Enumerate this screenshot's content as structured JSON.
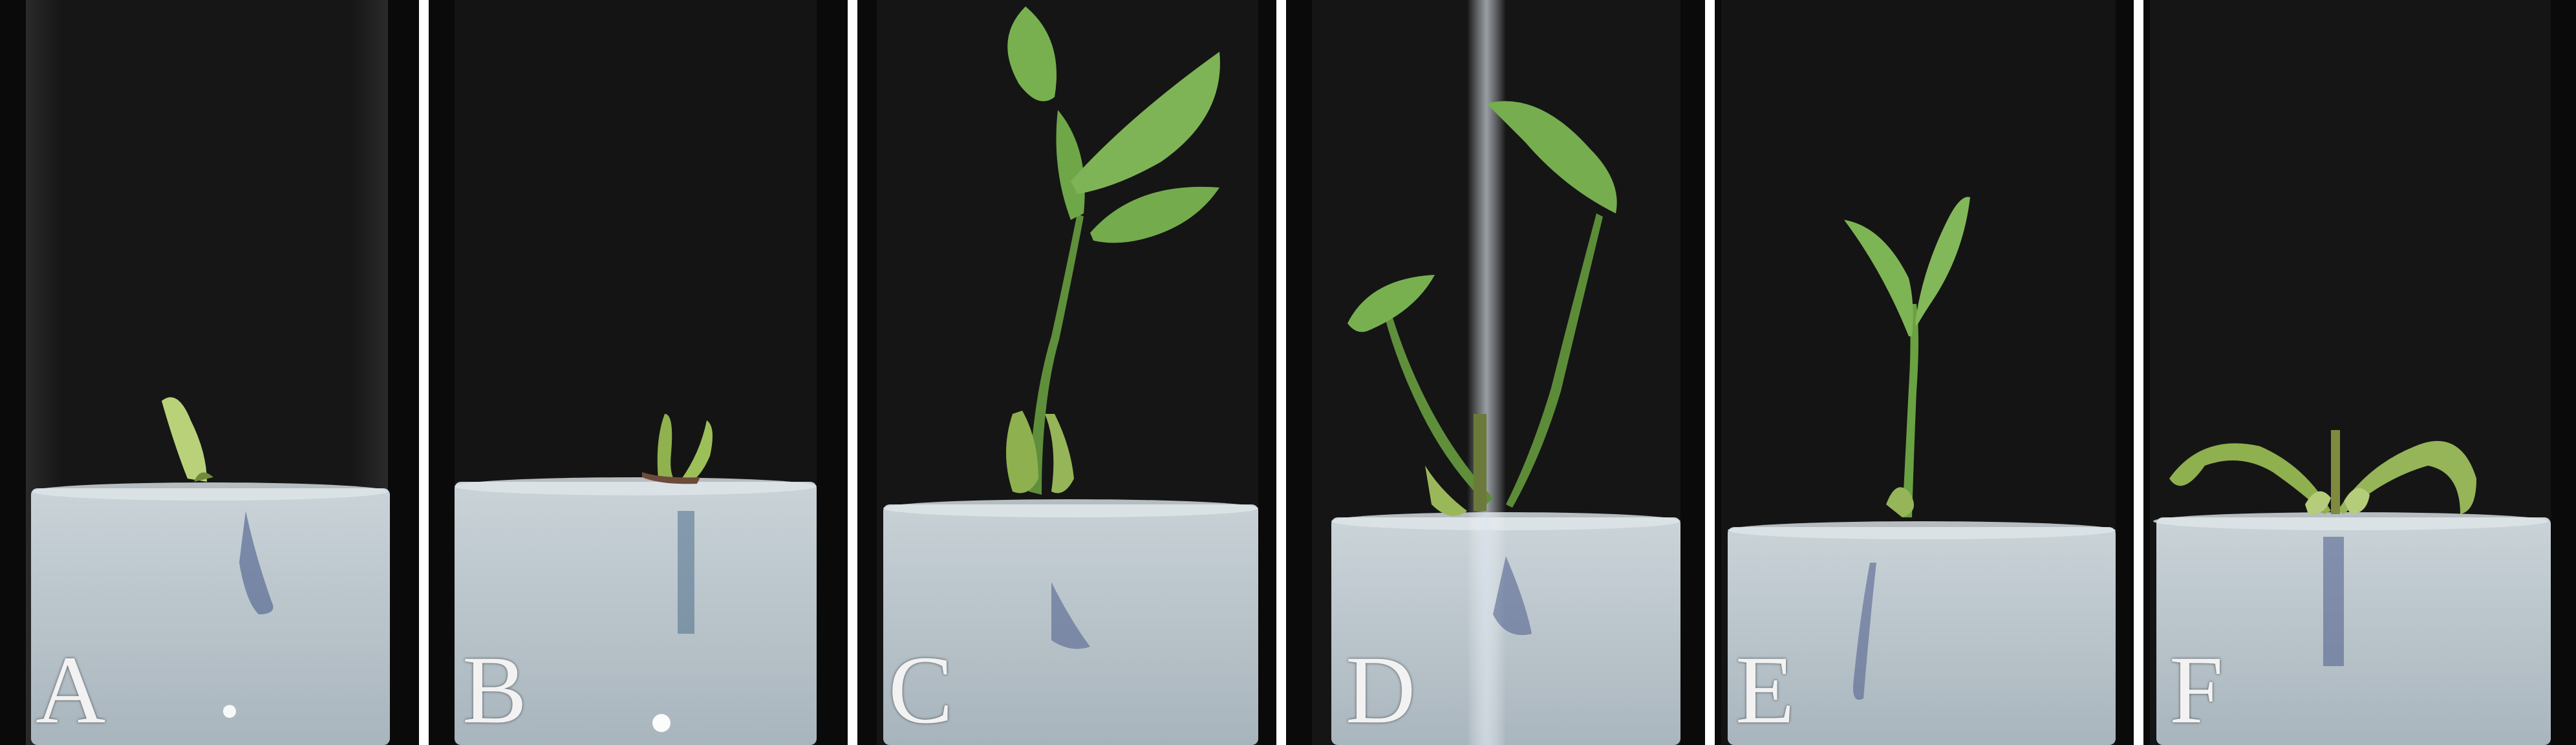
{
  "figure": {
    "panels": [
      {
        "letter": "A",
        "subject": "germinating-embryo-in-test-tube"
      },
      {
        "letter": "B",
        "subject": "small-shoot-in-test-tube"
      },
      {
        "letter": "C",
        "subject": "plantlet-with-leaves-in-test-tube"
      },
      {
        "letter": "D",
        "subject": "plantlet-with-arching-stems-in-test-tube"
      },
      {
        "letter": "E",
        "subject": "upright-shoot-in-test-tube"
      },
      {
        "letter": "F",
        "subject": "spreading-cotyledons-in-test-tube"
      }
    ]
  }
}
